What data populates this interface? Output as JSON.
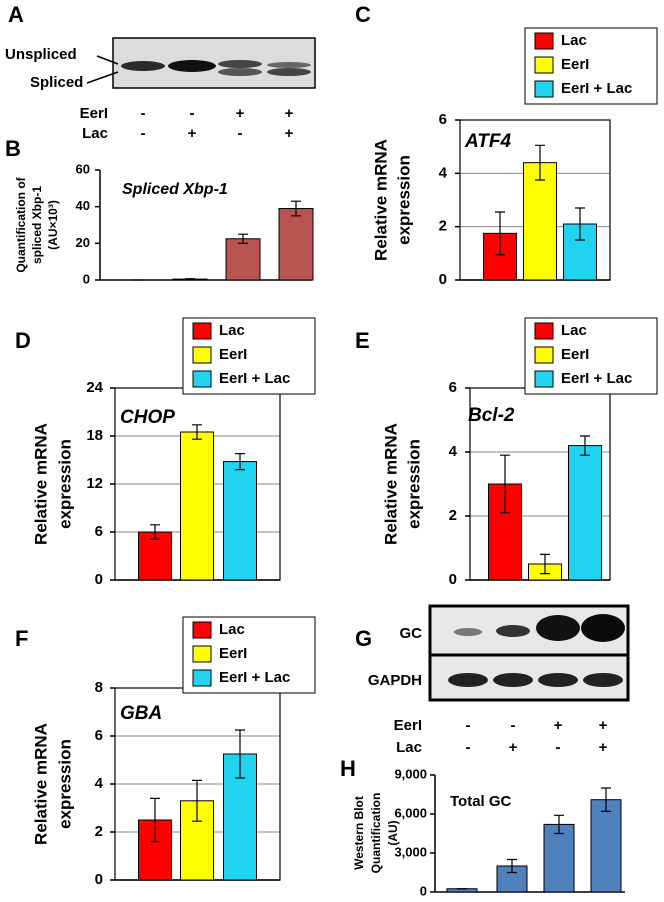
{
  "chart_data": [
    {
      "type": "bar",
      "panel": "B",
      "title": "Spliced Xbp-1",
      "ylabel": [
        "Quantification of",
        "spliced Xbp-1",
        "(AU×10³)"
      ],
      "values": [
        0,
        0.5,
        22.5,
        39
      ],
      "errors": [
        0,
        0.2,
        2.5,
        4
      ],
      "color": "#b85450",
      "ylim": [
        0,
        60
      ],
      "yticks": [
        0,
        20,
        40,
        60
      ],
      "grid": false
    },
    {
      "type": "grouped_bar",
      "panel": "C",
      "title": "ATF4",
      "ylabel": [
        "Relative mRNA",
        "expression"
      ],
      "series": [
        {
          "name": "Lac",
          "color": "#ff0000",
          "values": [
            1.75
          ],
          "errors": [
            0.8
          ]
        },
        {
          "name": "EerI",
          "color": "#ffff00",
          "values": [
            4.4
          ],
          "errors": [
            0.65
          ]
        },
        {
          "name": "EerI + Lac",
          "color": "#22d3f0",
          "values": [
            2.1
          ],
          "errors": [
            0.6
          ]
        }
      ],
      "ylim": [
        0,
        6
      ],
      "yticks": [
        0,
        2,
        4,
        6
      ],
      "grid": true,
      "legend": "upper right"
    },
    {
      "type": "grouped_bar",
      "panel": "D",
      "title": "CHOP",
      "ylabel": [
        "Relative mRNA",
        "expression"
      ],
      "series": [
        {
          "name": "Lac",
          "color": "#ff0000",
          "values": [
            6
          ],
          "errors": [
            0.9
          ]
        },
        {
          "name": "EerI",
          "color": "#ffff00",
          "values": [
            18.5
          ],
          "errors": [
            0.9
          ]
        },
        {
          "name": "EerI + Lac",
          "color": "#22d3f0",
          "values": [
            14.8
          ],
          "errors": [
            1.0
          ]
        }
      ],
      "ylim": [
        0,
        24
      ],
      "yticks": [
        0,
        6,
        12,
        18,
        24
      ],
      "grid": true,
      "legend": "upper right"
    },
    {
      "type": "grouped_bar",
      "panel": "E",
      "title": "Bcl-2",
      "ylabel": [
        "Relative mRNA",
        "expression"
      ],
      "series": [
        {
          "name": "Lac",
          "color": "#ff0000",
          "values": [
            3.0
          ],
          "errors": [
            0.9
          ]
        },
        {
          "name": "EerI",
          "color": "#ffff00",
          "values": [
            0.5
          ],
          "errors": [
            0.3
          ]
        },
        {
          "name": "EerI + Lac",
          "color": "#22d3f0",
          "values": [
            4.2
          ],
          "errors": [
            0.3
          ]
        }
      ],
      "ylim": [
        0,
        6
      ],
      "yticks": [
        0,
        2,
        4,
        6
      ],
      "grid": true,
      "legend": "upper right"
    },
    {
      "type": "grouped_bar",
      "panel": "F",
      "title": "GBA",
      "ylabel": [
        "Relative mRNA",
        "expression"
      ],
      "series": [
        {
          "name": "Lac",
          "color": "#ff0000",
          "values": [
            2.5
          ],
          "errors": [
            0.9
          ]
        },
        {
          "name": "EerI",
          "color": "#ffff00",
          "values": [
            3.3
          ],
          "errors": [
            0.85
          ]
        },
        {
          "name": "EerI + Lac",
          "color": "#22d3f0",
          "values": [
            5.25
          ],
          "errors": [
            1.0
          ]
        }
      ],
      "ylim": [
        0,
        8
      ],
      "yticks": [
        0,
        2,
        4,
        6,
        8
      ],
      "grid": true,
      "legend": "upper right"
    },
    {
      "type": "bar",
      "panel": "H",
      "title": "Total GC",
      "ylabel": [
        "Western Blot",
        "Quantification",
        "(AU)"
      ],
      "values": [
        250,
        2000,
        5200,
        7100
      ],
      "errors": [
        0,
        500,
        700,
        900
      ],
      "color": "#4f81bd",
      "ylim": [
        0,
        9000
      ],
      "yticks": [
        0,
        {
          "value": 3000,
          "label": "3,000"
        },
        {
          "value": 6000,
          "label": "6,000"
        },
        {
          "value": 9000,
          "label": "9,000"
        }
      ],
      "grid": false
    }
  ],
  "gel_a": {
    "panel": "A",
    "bands": [
      "Unspliced",
      "Spliced"
    ],
    "rows": [
      {
        "name": "EerI",
        "signs": [
          "-",
          "-",
          "+",
          "+"
        ]
      },
      {
        "name": "Lac",
        "signs": [
          "-",
          "+",
          "-",
          "+"
        ]
      }
    ]
  },
  "blot_g": {
    "panel": "G",
    "bands": [
      "GC",
      "GAPDH"
    ],
    "rows": [
      {
        "name": "EerI",
        "signs": [
          "-",
          "-",
          "+",
          "+"
        ]
      },
      {
        "name": "Lac",
        "signs": [
          "-",
          "+",
          "-",
          "+"
        ]
      }
    ]
  }
}
